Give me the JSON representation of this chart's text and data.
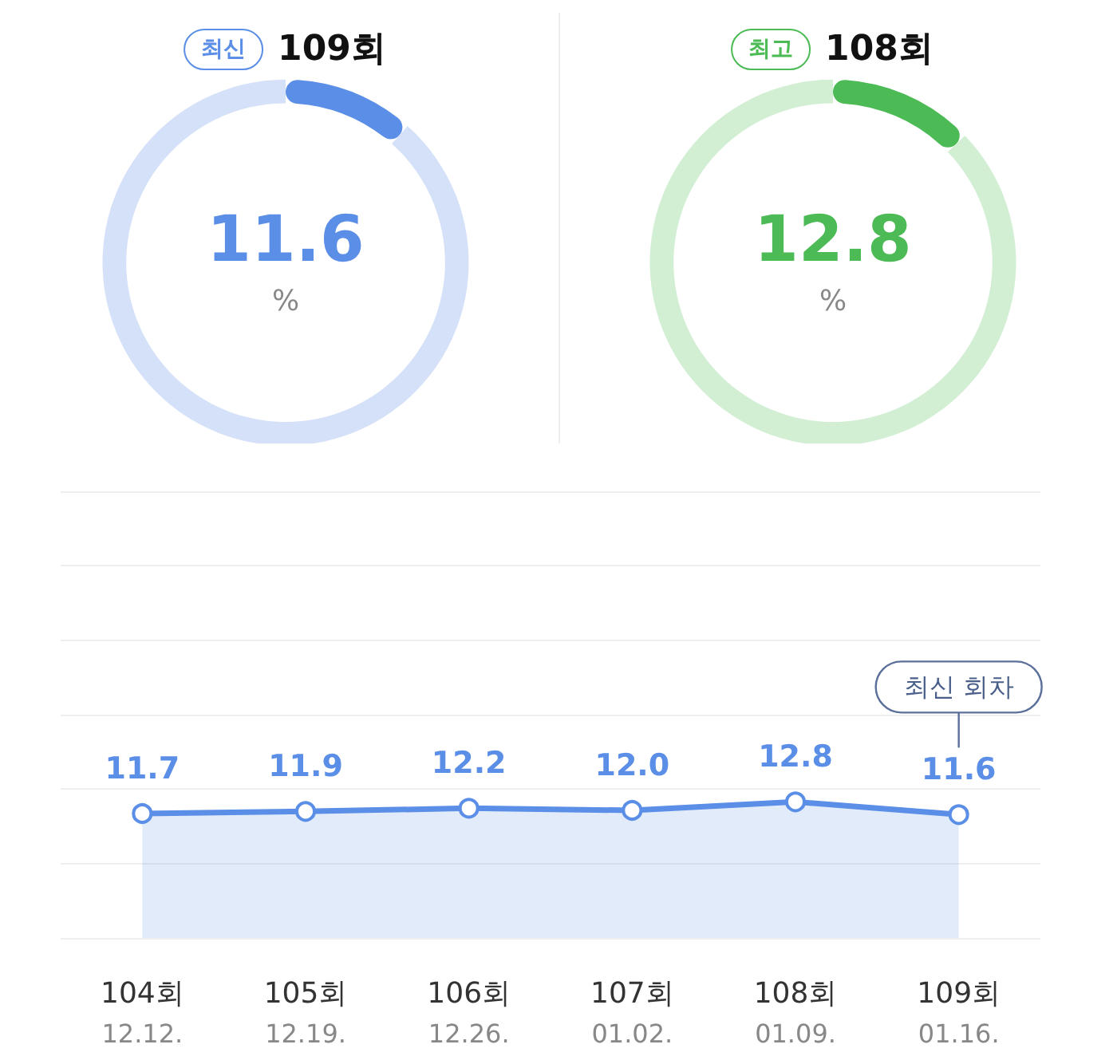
{
  "chart_data": [
    {
      "type": "donut",
      "title": "109회",
      "annotations": [
        "최신",
        "%"
      ],
      "categories": [
        null,
        null
      ],
      "values": [
        11.6,
        88.4
      ],
      "colors": [
        "#5b8ee6",
        "#d5e1f8"
      ],
      "value_labels": [
        "11.6",
        null
      ]
    },
    {
      "type": "donut",
      "title": "108회",
      "annotations": [
        "최고",
        "%"
      ],
      "categories": [
        null,
        null
      ],
      "values": [
        12.8,
        87.2
      ],
      "colors": [
        "#4cbb55",
        "#d2efd4"
      ],
      "value_labels": [
        "12.8",
        null
      ]
    },
    {
      "type": "area",
      "categories": [
        "104회\n12.12.",
        "105회\n12.19.",
        "106회\n12.26.",
        "107회\n01.02.",
        "108회\n01.09.",
        "109회\n01.16."
      ],
      "series": [
        {
          "type": "area",
          "color": "#5b8ee6",
          "values": [
            11.7,
            11.9,
            12.2,
            12.0,
            12.8,
            11.6
          ],
          "value_labels": [
            "11.7",
            "11.9",
            "12.2",
            "12.0",
            "12.8",
            "11.6"
          ]
        }
      ],
      "ylim": [
        0,
        42
      ],
      "yticks": [
        {
          "value": 0,
          "label": null
        },
        {
          "value": 7,
          "label": null
        },
        {
          "value": 14,
          "label": null
        },
        {
          "value": 21,
          "label": null
        },
        {
          "value": 28,
          "label": null
        },
        {
          "value": 35,
          "label": null
        },
        {
          "value": 42,
          "label": null
        }
      ],
      "tick_labels": "x",
      "grid": "y",
      "marker": "circle",
      "line_style": "solid",
      "annotations": [
        "최신 회차"
      ]
    }
  ]
}
